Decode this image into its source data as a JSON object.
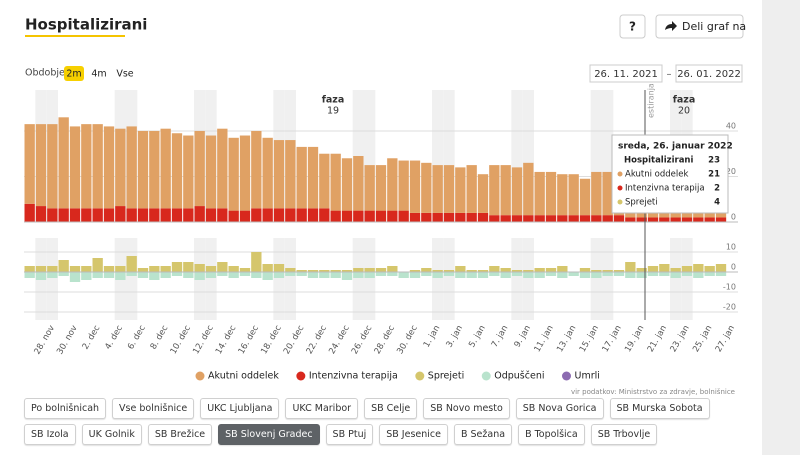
{
  "header": {
    "title": "Hospitalizirani",
    "help": "?",
    "share": "Deli graf na"
  },
  "period": {
    "label": "Obdobje",
    "options": [
      "2m",
      "4m",
      "Vse"
    ],
    "selected": 0,
    "from": "26. 11. 2021",
    "separator": "–",
    "to": "26. 01. 2022"
  },
  "chart_data": [
    {
      "type": "bar",
      "stacked": true,
      "categories": [
        null,
        null,
        "28. nov",
        null,
        "30. nov",
        null,
        "2. dec",
        null,
        "4. dec",
        null,
        "6. dec",
        null,
        "8. dec",
        null,
        "10. dec",
        null,
        "12. dec",
        null,
        "14. dec",
        null,
        "16. dec",
        null,
        "18. dec",
        null,
        "20. dec",
        null,
        "22. dec",
        null,
        "24. dec",
        null,
        "26. dec",
        null,
        "28. dec",
        null,
        "30. dec",
        null,
        "1. jan",
        null,
        "3. jan",
        null,
        "5. jan",
        null,
        "7. jan",
        null,
        "9. jan",
        null,
        "11. jan",
        null,
        "13. jan",
        null,
        "15. jan",
        null,
        "17. jan",
        null,
        "19. jan",
        null,
        "21. jan",
        null,
        "23. jan",
        null,
        "25. jan",
        null,
        "27. jan"
      ],
      "series": [
        {
          "name": "Akutni oddelek",
          "color": "#e0a164",
          "values": [
            35,
            36,
            37,
            40,
            36,
            37,
            37,
            36,
            34,
            36,
            34,
            34,
            35,
            33,
            32,
            33,
            32,
            35,
            32,
            33,
            34,
            31,
            30,
            30,
            27,
            27,
            24,
            25,
            23,
            24,
            20,
            20,
            23,
            22,
            23,
            22,
            21,
            21,
            20,
            21,
            17,
            22,
            22,
            21,
            23,
            19,
            19,
            18,
            18,
            16,
            19,
            19,
            18,
            19,
            14,
            16,
            19,
            19,
            18,
            19,
            22,
            21,
            null
          ]
        },
        {
          "name": "Intenzivna terapija",
          "color": "#d8281d",
          "values": [
            8,
            7,
            6,
            6,
            6,
            6,
            6,
            6,
            7,
            6,
            6,
            6,
            6,
            6,
            6,
            7,
            6,
            6,
            5,
            5,
            6,
            6,
            6,
            6,
            6,
            6,
            6,
            5,
            5,
            5,
            5,
            5,
            5,
            5,
            4,
            4,
            4,
            4,
            4,
            4,
            4,
            3,
            3,
            3,
            3,
            3,
            3,
            3,
            3,
            3,
            3,
            3,
            3,
            2,
            2,
            2,
            2,
            2,
            2,
            2,
            2,
            2,
            null
          ]
        }
      ],
      "ylim": [
        0,
        58
      ],
      "yticks": [
        0,
        20,
        40
      ],
      "grid": true,
      "annotations": [
        {
          "title": "faza",
          "number": "19"
        },
        {
          "title": "faza",
          "number": "20"
        },
        {
          "title": "estiranja"
        }
      ],
      "tooltip": {
        "date": "sreda, 26. januar 2022",
        "total_label": "Hospitalizirani",
        "total": 23
      }
    },
    {
      "type": "bar",
      "stacked": true,
      "series": [
        {
          "name": "Sprejeti",
          "color": "#d5c66c",
          "values": [
            3,
            3,
            3,
            6,
            3,
            3,
            7,
            3,
            3,
            8,
            2,
            3,
            3,
            5,
            5,
            4,
            3,
            5,
            3,
            2,
            10,
            4,
            4,
            2,
            1,
            1,
            1,
            1,
            1,
            2,
            2,
            2,
            3,
            0,
            1,
            2,
            1,
            1,
            3,
            1,
            1,
            3,
            2,
            1,
            1,
            2,
            2,
            3,
            0,
            2,
            1,
            1,
            1,
            5,
            2,
            3,
            4,
            2,
            3,
            4,
            3,
            4,
            null
          ]
        },
        {
          "name": "Odpuščeni",
          "color": "#b9e3cd",
          "values": [
            -3,
            -4,
            -3,
            -2,
            -5,
            -4,
            -3,
            -3,
            -4,
            -2,
            -3,
            -4,
            -3,
            -2,
            -3,
            -4,
            -3,
            -2,
            -3,
            -2,
            -3,
            -4,
            -3,
            -2,
            -2,
            -3,
            -3,
            -3,
            -4,
            -3,
            -3,
            -2,
            -2,
            -3,
            -3,
            -2,
            -3,
            -2,
            -3,
            -3,
            -3,
            -2,
            -3,
            -2,
            -3,
            -3,
            -2,
            -3,
            -2,
            -3,
            -3,
            -2,
            -2,
            -3,
            -3,
            -2,
            -2,
            -3,
            -2,
            -3,
            -2,
            -2,
            null
          ]
        },
        {
          "name": "Umrli",
          "color": "#8c6bb1",
          "values": [
            0,
            0,
            0,
            0,
            0,
            0,
            0,
            0,
            0,
            0,
            0,
            0,
            0,
            0,
            0,
            0,
            0,
            0,
            0,
            0,
            0,
            0,
            0,
            0,
            0,
            0,
            0,
            0,
            0,
            0,
            0,
            0,
            0,
            0,
            0,
            0,
            0,
            0,
            0,
            0,
            0,
            0,
            0,
            0,
            0,
            0,
            0,
            0,
            0,
            0,
            0,
            0,
            0,
            0,
            0,
            0,
            0,
            0,
            0,
            0,
            0,
            0,
            null
          ]
        }
      ],
      "ylim": [
        -24,
        17
      ],
      "yticks": [
        -20,
        -10,
        0,
        10
      ],
      "grid": true
    }
  ],
  "source": "vir podatkov: Ministrstvo za zdravje, bolnišnice",
  "hospitals": {
    "options": [
      "Po bolnišnicah",
      "Vse bolnišnice",
      "UKC Ljubljana",
      "UKC Maribor",
      "SB Celje",
      "SB Novo mesto",
      "SB Nova Gorica",
      "SB Murska Sobota",
      "SB Izola",
      "UK Golnik",
      "SB Brežice",
      "SB Slovenj Gradec",
      "SB Ptuj",
      "SB Jesenice",
      "B Sežana",
      "B Topolšica",
      "SB Trbovlje"
    ],
    "selected": 11
  }
}
